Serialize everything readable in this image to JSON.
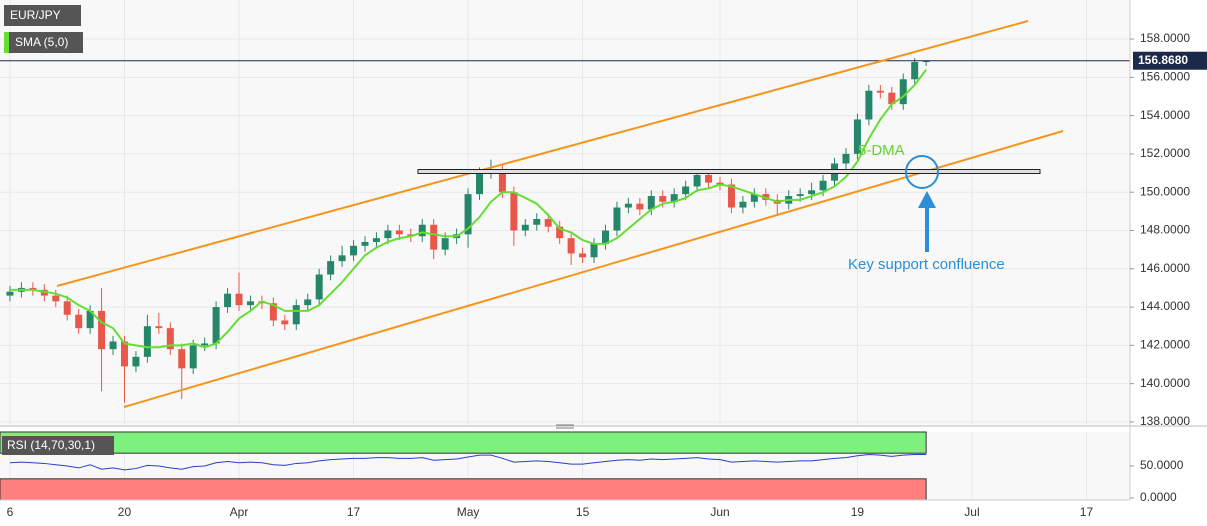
{
  "chart_data": [
    {
      "type": "candlestick",
      "title": "EUR/JPY",
      "x": [
        0,
        1,
        2,
        3,
        4,
        5,
        6,
        7,
        8,
        9,
        10,
        11,
        12,
        13,
        14,
        15,
        16,
        17,
        18,
        19,
        20,
        21,
        22,
        23,
        24,
        25,
        26,
        27,
        28,
        29,
        30,
        31,
        32,
        33,
        34,
        35,
        36,
        37,
        38,
        39,
        40,
        41,
        42,
        43,
        44,
        45,
        46,
        47,
        48,
        49,
        50,
        51,
        52,
        53,
        54,
        55,
        56,
        57,
        58,
        59,
        60,
        61,
        62,
        63,
        64,
        65,
        66,
        67,
        68,
        69,
        70,
        71,
        72,
        73,
        74,
        75,
        76,
        77,
        78,
        79,
        80
      ],
      "open": [
        144.6,
        144.8,
        145.0,
        144.9,
        144.6,
        144.3,
        143.6,
        142.9,
        143.8,
        141.8,
        142.2,
        140.9,
        141.4,
        143.0,
        142.9,
        141.8,
        140.8,
        142.0,
        142.1,
        144.0,
        144.7,
        144.1,
        144.3,
        144.2,
        143.3,
        143.1,
        144.1,
        144.4,
        145.7,
        146.4,
        146.7,
        147.2,
        147.4,
        147.6,
        148.0,
        147.8,
        147.7,
        148.3,
        147.0,
        147.6,
        147.8,
        149.9,
        151.0,
        151.2,
        150.0,
        148.0,
        148.3,
        148.6,
        148.2,
        147.6,
        146.8,
        146.6,
        147.3,
        148.0,
        149.2,
        149.4,
        149.1,
        149.8,
        149.5,
        149.9,
        150.3,
        150.9,
        150.5,
        150.4,
        149.2,
        149.5,
        149.9,
        149.6,
        149.4,
        149.8,
        149.9,
        150.1,
        150.6,
        151.5,
        152.0,
        153.8,
        155.3,
        155.2,
        154.6,
        155.9,
        156.8
      ],
      "high": [
        145.1,
        145.3,
        145.3,
        145.2,
        144.9,
        144.6,
        143.9,
        144.1,
        145.0,
        142.5,
        142.5,
        141.7,
        143.6,
        143.7,
        143.2,
        142.1,
        142.3,
        142.4,
        144.3,
        145.0,
        145.8,
        144.6,
        144.6,
        144.5,
        143.6,
        144.4,
        144.7,
        146.0,
        146.7,
        147.2,
        147.5,
        147.7,
        147.9,
        148.3,
        148.3,
        148.1,
        148.6,
        148.6,
        147.9,
        148.1,
        150.2,
        151.3,
        151.7,
        151.5,
        150.3,
        148.6,
        148.9,
        148.9,
        148.5,
        147.9,
        147.1,
        147.6,
        148.3,
        149.5,
        149.7,
        149.7,
        150.1,
        150.1,
        150.2,
        150.6,
        151.2,
        151.2,
        150.8,
        150.7,
        149.8,
        150.2,
        150.2,
        149.9,
        150.1,
        150.2,
        150.5,
        150.9,
        151.8,
        152.3,
        154.1,
        155.6,
        155.6,
        155.5,
        156.2,
        157.0,
        156.9
      ],
      "low": [
        144.3,
        144.5,
        144.6,
        144.3,
        144.0,
        143.3,
        142.6,
        142.6,
        139.6,
        141.5,
        139.0,
        140.6,
        141.1,
        142.6,
        141.5,
        139.2,
        140.5,
        141.7,
        141.8,
        143.7,
        143.8,
        143.8,
        143.9,
        143.0,
        142.8,
        142.8,
        143.8,
        144.1,
        145.4,
        146.1,
        146.4,
        146.9,
        147.1,
        147.3,
        147.5,
        147.4,
        147.4,
        146.5,
        146.7,
        147.3,
        147.1,
        149.6,
        150.7,
        149.7,
        147.2,
        147.7,
        148.0,
        147.9,
        147.3,
        146.2,
        146.3,
        146.3,
        147.0,
        147.7,
        148.9,
        148.8,
        148.8,
        149.2,
        149.2,
        149.6,
        150.0,
        150.2,
        150.1,
        148.9,
        148.9,
        149.2,
        149.3,
        148.8,
        149.1,
        149.5,
        149.6,
        149.8,
        150.3,
        151.2,
        151.7,
        153.5,
        154.9,
        154.3,
        154.3,
        155.6,
        156.6
      ],
      "close": [
        144.8,
        145.0,
        144.9,
        144.6,
        144.3,
        143.6,
        142.9,
        143.8,
        141.8,
        142.2,
        140.9,
        141.4,
        143.0,
        142.9,
        141.8,
        140.8,
        142.0,
        142.1,
        144.0,
        144.7,
        144.1,
        144.3,
        144.2,
        143.3,
        143.1,
        144.1,
        144.4,
        145.7,
        146.4,
        146.7,
        147.2,
        147.4,
        147.6,
        148.0,
        147.8,
        147.7,
        148.3,
        147.0,
        147.6,
        147.8,
        149.9,
        151.0,
        151.2,
        150.0,
        148.0,
        148.3,
        148.6,
        148.2,
        147.6,
        146.8,
        146.6,
        147.3,
        148.0,
        149.2,
        149.4,
        149.1,
        149.8,
        149.5,
        149.9,
        150.3,
        150.9,
        150.5,
        150.4,
        149.2,
        149.5,
        149.9,
        149.6,
        149.4,
        149.8,
        149.9,
        150.1,
        150.6,
        151.5,
        152.0,
        153.8,
        155.3,
        155.2,
        154.6,
        155.9,
        156.8,
        156.868
      ],
      "up_color": "#26866a",
      "down_color": "#e8574a",
      "sma": {
        "name": "SMA (5,0)",
        "color": "#66dd33",
        "values": [
          144.9,
          144.9,
          144.9,
          144.8,
          144.7,
          144.5,
          144.1,
          143.8,
          143.2,
          142.9,
          142.1,
          142.0,
          141.9,
          141.9,
          142.0,
          142.0,
          142.1,
          141.9,
          142.1,
          142.7,
          143.4,
          143.8,
          144.3,
          144.1,
          143.8,
          143.8,
          143.8,
          144.1,
          144.7,
          145.3,
          146.0,
          146.7,
          147.1,
          147.4,
          147.6,
          147.7,
          147.9,
          147.8,
          147.7,
          147.7,
          148.1,
          148.7,
          149.5,
          150.0,
          150.0,
          149.7,
          149.4,
          148.8,
          148.1,
          147.9,
          147.5,
          147.3,
          147.3,
          147.6,
          148.1,
          148.6,
          149.1,
          149.4,
          149.5,
          149.7,
          150.1,
          150.2,
          150.4,
          150.3,
          150.1,
          149.9,
          149.7,
          149.5,
          149.6,
          149.6,
          149.8,
          150.0,
          150.3,
          150.8,
          151.6,
          152.8,
          153.8,
          154.6,
          155.0,
          155.6,
          156.4
        ]
      },
      "last_price": {
        "value": 156.868,
        "label": "156.8680"
      },
      "xlim": [
        -0.87,
        97.8
      ],
      "xticks": [
        {
          "value": 0,
          "label": "6"
        },
        {
          "value": 10,
          "label": "20"
        },
        {
          "value": 20,
          "label": "Apr"
        },
        {
          "value": 30,
          "label": "17"
        },
        {
          "value": 40,
          "label": "May"
        },
        {
          "value": 50,
          "label": "15"
        },
        {
          "value": 62,
          "label": "Jun"
        },
        {
          "value": 74,
          "label": "19"
        },
        {
          "value": 84,
          "label": "Jul"
        },
        {
          "value": 94,
          "label": "17"
        }
      ],
      "ylim": [
        137.84,
        160.04
      ],
      "yticks": [
        {
          "value": 158,
          "label": "158.0000"
        },
        {
          "value": 156,
          "label": "156.0000"
        },
        {
          "value": 154,
          "label": "154.0000"
        },
        {
          "value": 152,
          "label": "152.0000"
        },
        {
          "value": 150,
          "label": "150.0000"
        },
        {
          "value": 148,
          "label": "148.0000"
        },
        {
          "value": 146,
          "label": "146.0000"
        },
        {
          "value": 144,
          "label": "144.0000"
        },
        {
          "value": 142,
          "label": "142.0000"
        },
        {
          "value": 140,
          "label": "140.0000"
        },
        {
          "value": 138,
          "label": "138.0000"
        }
      ],
      "grid": true,
      "annotations": [
        "5-DMA",
        "Key support confluence"
      ]
    },
    {
      "type": "line",
      "title": "RSI (14,70,30,1)",
      "series": [
        {
          "color": "#2b3ec9",
          "values": [
            55,
            56,
            55,
            54,
            52,
            50,
            47,
            52,
            45,
            47,
            44,
            46,
            51,
            50,
            47,
            45,
            49,
            50,
            55,
            57,
            55,
            56,
            55,
            52,
            51,
            54,
            55,
            58,
            60,
            61,
            62,
            62,
            63,
            63,
            62,
            62,
            63,
            59,
            60,
            61,
            64,
            67,
            67,
            62,
            56,
            57,
            58,
            57,
            55,
            53,
            53,
            55,
            57,
            59,
            60,
            59,
            61,
            60,
            61,
            62,
            63,
            61,
            60,
            56,
            57,
            58,
            57,
            56,
            57,
            58,
            58,
            60,
            62,
            63,
            66,
            68,
            67,
            65,
            67,
            68,
            68
          ]
        }
      ],
      "overbought": 70,
      "oversold": 30,
      "overbought_color": "#7ef07e",
      "oversold_color": "#ff7f7f",
      "ylim": [
        -3.1,
        103.1
      ],
      "yticks": [
        {
          "value": 50,
          "label": "50.0000"
        },
        {
          "value": 0,
          "label": "0.0000"
        }
      ]
    }
  ]
}
